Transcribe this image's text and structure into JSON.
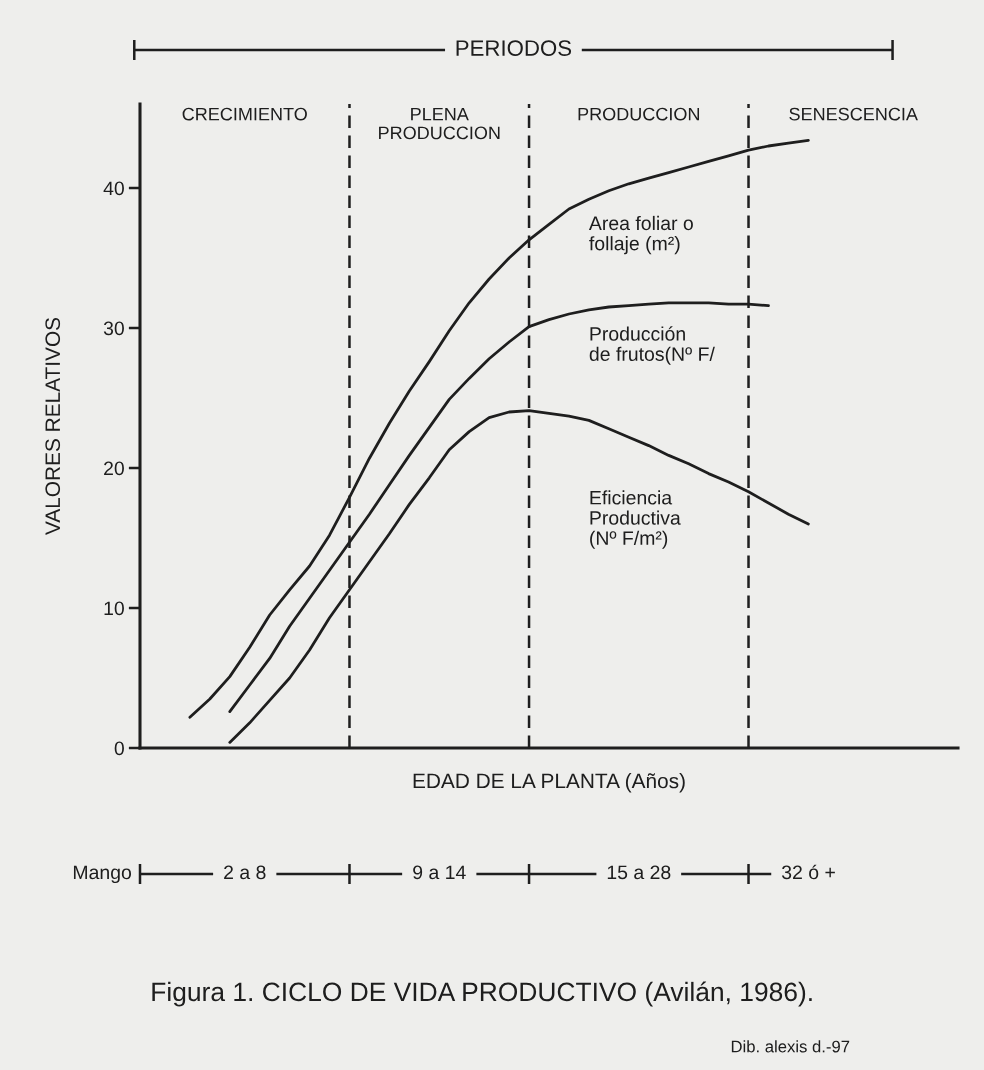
{
  "chart_data": {
    "type": "line",
    "title": "Figura 1. CICLO DE VIDA PRODUCTIVO (Avilán, 1986).",
    "xlabel": "EDAD DE LA PLANTA (Años)",
    "ylabel": "VALORES RELATIVOS",
    "annotations": [
      "PERIODOS",
      "CRECIMIENTO",
      "PLENA\nPRODUCCION",
      "PRODUCCION",
      "SENESCENCIA",
      "Mango",
      "2 a 8",
      "9 a 14",
      "15 a 28",
      "32 ó +",
      "Dib. alexis d.-97"
    ],
    "categories": [
      null,
      null,
      null,
      null,
      null,
      null,
      null,
      null,
      null,
      null,
      null,
      null,
      null,
      null,
      null,
      null,
      null,
      null,
      null,
      null,
      null,
      null,
      null,
      null,
      null,
      null,
      null,
      null,
      null,
      null,
      null,
      null,
      null,
      null,
      null,
      null,
      null,
      null,
      null,
      null,
      null
    ],
    "series": [
      {
        "name": "Area foliar o\nfollaje (m²)",
        "color": "#1e1e1e",
        "values": [
          null,
          null,
          2.2,
          3.5,
          5.1,
          7.2,
          9.5,
          11.3,
          13.0,
          15.2,
          17.9,
          20.7,
          23.2,
          25.5,
          27.6,
          29.8,
          31.8,
          33.5,
          35.0,
          36.3,
          37.4,
          38.5,
          39.2,
          39.8,
          40.3,
          40.7,
          41.1,
          41.5,
          41.9,
          42.3,
          42.7,
          43.0,
          43.2,
          43.4,
          null,
          null,
          null,
          null,
          null,
          null,
          null
        ]
      },
      {
        "name": "Producción\nde frutos(Nº F/",
        "color": "#1e1e1e",
        "values": [
          null,
          null,
          null,
          null,
          2.6,
          4.5,
          6.4,
          8.7,
          10.7,
          12.7,
          14.7,
          16.7,
          18.8,
          20.9,
          22.9,
          24.9,
          26.4,
          27.8,
          29.0,
          30.1,
          30.6,
          31.0,
          31.3,
          31.5,
          31.6,
          31.7,
          31.8,
          31.8,
          31.8,
          31.7,
          31.7,
          31.6,
          null,
          null,
          null,
          null,
          null,
          null,
          null,
          null,
          null
        ]
      },
      {
        "name": "Eficiencia\nProductiva\n(Nº F/m²)",
        "color": "#1e1e1e",
        "values": [
          null,
          null,
          null,
          null,
          0.4,
          1.8,
          3.4,
          5.0,
          7.0,
          9.3,
          11.3,
          13.3,
          15.3,
          17.4,
          19.3,
          21.3,
          22.6,
          23.6,
          24.0,
          24.1,
          23.9,
          23.7,
          23.4,
          22.8,
          22.2,
          21.6,
          20.9,
          20.3,
          19.6,
          19.0,
          18.3,
          17.5,
          16.7,
          16.0,
          null,
          null,
          null,
          null,
          null,
          null,
          null
        ]
      }
    ],
    "ylim": [
      0,
      46
    ],
    "yticks": [
      0,
      10,
      20,
      30,
      40
    ],
    "grid": "x",
    "line_style": "solid",
    "tick_labels": "y"
  }
}
